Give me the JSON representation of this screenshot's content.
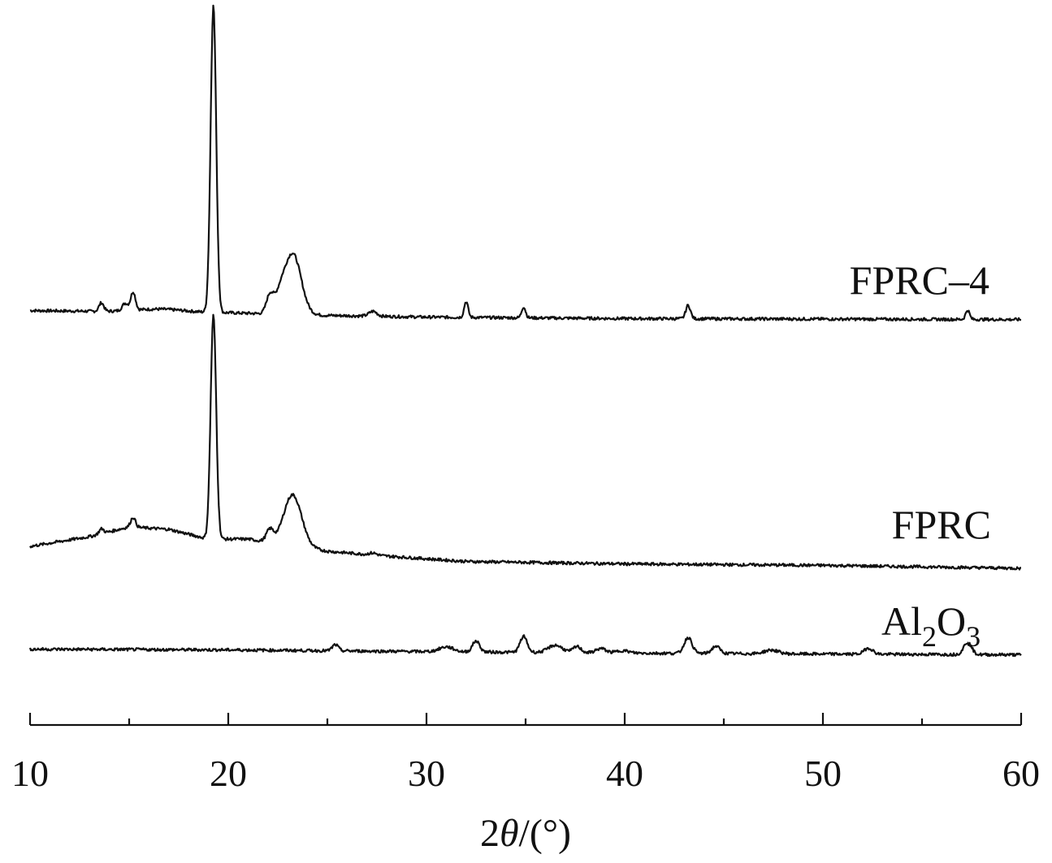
{
  "chart_data": {
    "type": "line",
    "title": "",
    "xlabel": {
      "prefix": "2",
      "italic": "θ",
      "suffix": "/(°)"
    },
    "ylabel": "",
    "xlim": [
      10,
      60
    ],
    "x_ticks_major": [
      10,
      20,
      30,
      40,
      50,
      60
    ],
    "x_ticks_minor": [
      15,
      25,
      35,
      45,
      55
    ],
    "y_axis_shown": false,
    "grid": false,
    "legend": "labels placed at right end of each trace",
    "series": [
      {
        "name": "FPRC–4",
        "label": {
          "main": "FPRC–4",
          "sub1": "",
          "mid": "",
          "sub2": ""
        },
        "baseline": [
          [
            10,
            0.45
          ],
          [
            15,
            0.4
          ],
          [
            20,
            0.36
          ],
          [
            25,
            0.25
          ],
          [
            30,
            0.18
          ],
          [
            40,
            0.12
          ],
          [
            50,
            0.1
          ],
          [
            60,
            0.08
          ]
        ],
        "peaks": [
          {
            "x": 13.6,
            "h": 0.35,
            "w": 0.12
          },
          {
            "x": 14.8,
            "h": 0.3,
            "w": 0.15
          },
          {
            "x": 15.2,
            "h": 0.75,
            "w": 0.12
          },
          {
            "x": 16.5,
            "h": 0.12,
            "w": 1.2
          },
          {
            "x": 19.25,
            "h": 12.6,
            "w": 0.14
          },
          {
            "x": 22.1,
            "h": 0.75,
            "w": 0.18
          },
          {
            "x": 22.6,
            "h": 0.55,
            "w": 0.25
          },
          {
            "x": 23.25,
            "h": 2.5,
            "w": 0.42
          },
          {
            "x": 27.3,
            "h": 0.2,
            "w": 0.2
          },
          {
            "x": 32.0,
            "h": 0.65,
            "w": 0.1
          },
          {
            "x": 34.9,
            "h": 0.45,
            "w": 0.1
          },
          {
            "x": 43.2,
            "h": 0.55,
            "w": 0.12
          },
          {
            "x": 57.3,
            "h": 0.38,
            "w": 0.1
          }
        ]
      },
      {
        "name": "FPRC",
        "label": {
          "main": "FPRC",
          "sub1": "",
          "mid": "",
          "sub2": ""
        },
        "baseline": [
          [
            10,
            0.9
          ],
          [
            13,
            1.3
          ],
          [
            15,
            1.7
          ],
          [
            17,
            1.6
          ],
          [
            19,
            1.2
          ],
          [
            21,
            1.2
          ],
          [
            25,
            0.7
          ],
          [
            28,
            0.5
          ],
          [
            32,
            0.28
          ],
          [
            40,
            0.18
          ],
          [
            50,
            0.12
          ],
          [
            60,
            0.0
          ]
        ],
        "peaks": [
          {
            "x": 13.6,
            "h": 0.2,
            "w": 0.12
          },
          {
            "x": 15.2,
            "h": 0.4,
            "w": 0.12
          },
          {
            "x": 19.25,
            "h": 9.2,
            "w": 0.14
          },
          {
            "x": 22.1,
            "h": 0.5,
            "w": 0.18
          },
          {
            "x": 23.25,
            "h": 2.1,
            "w": 0.45
          },
          {
            "x": 27.3,
            "h": 0.08,
            "w": 0.2
          }
        ]
      },
      {
        "name": "Al2O3",
        "label": {
          "main": "Al",
          "sub1": "2",
          "mid": "O",
          "sub2": "3"
        },
        "baseline": [
          [
            10,
            0.28
          ],
          [
            20,
            0.25
          ],
          [
            30,
            0.18
          ],
          [
            40,
            0.12
          ],
          [
            50,
            0.08
          ],
          [
            60,
            0.05
          ]
        ],
        "peaks": [
          {
            "x": 25.4,
            "h": 0.25,
            "w": 0.15
          },
          {
            "x": 31.0,
            "h": 0.2,
            "w": 0.35
          },
          {
            "x": 32.5,
            "h": 0.45,
            "w": 0.18
          },
          {
            "x": 34.9,
            "h": 0.65,
            "w": 0.18
          },
          {
            "x": 36.5,
            "h": 0.3,
            "w": 0.35
          },
          {
            "x": 37.6,
            "h": 0.25,
            "w": 0.2
          },
          {
            "x": 38.8,
            "h": 0.18,
            "w": 0.25
          },
          {
            "x": 39.9,
            "h": 0.1,
            "w": 0.3
          },
          {
            "x": 43.2,
            "h": 0.65,
            "w": 0.2
          },
          {
            "x": 44.6,
            "h": 0.3,
            "w": 0.2
          },
          {
            "x": 47.4,
            "h": 0.15,
            "w": 0.35
          },
          {
            "x": 52.3,
            "h": 0.25,
            "w": 0.22
          },
          {
            "x": 57.3,
            "h": 0.5,
            "w": 0.2
          }
        ]
      }
    ]
  }
}
